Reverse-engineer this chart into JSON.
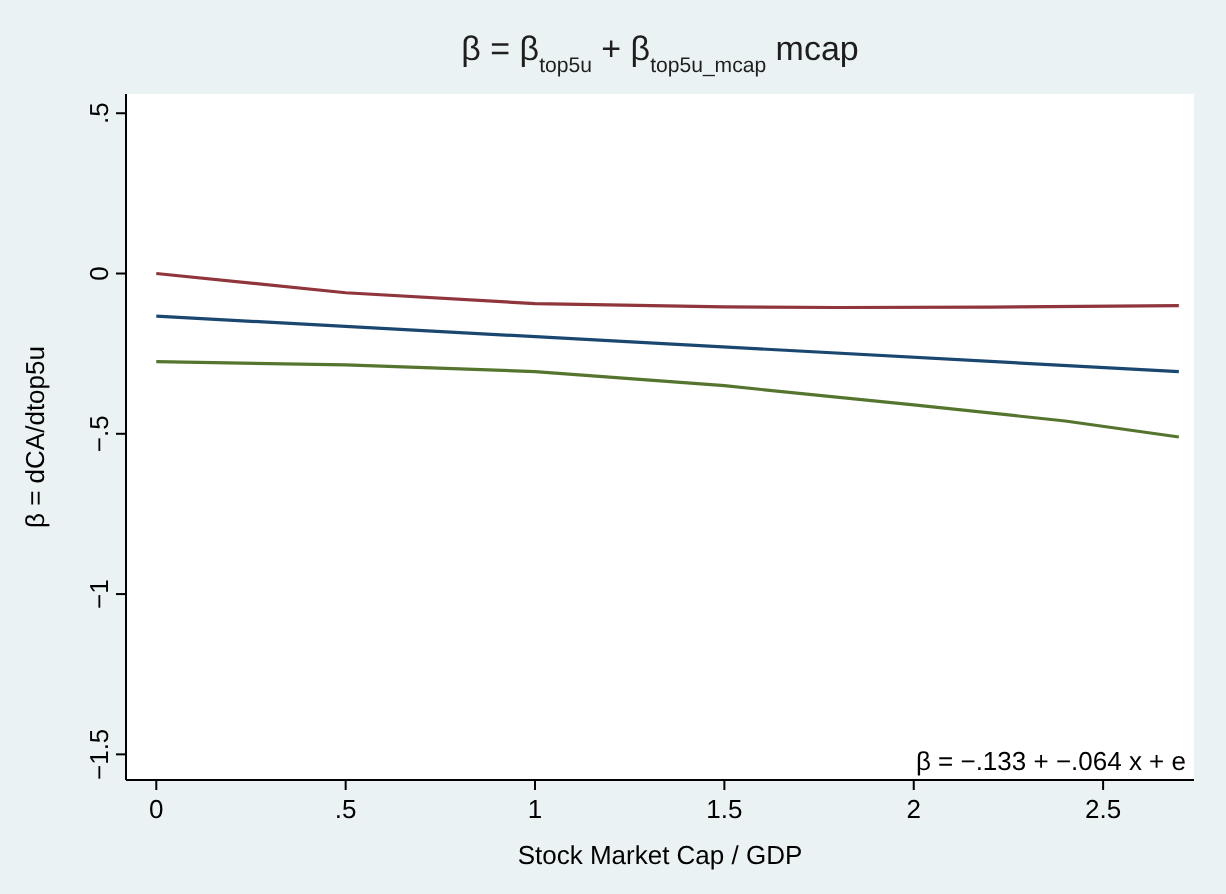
{
  "chart_data": {
    "type": "line",
    "title": "β = β$_{top5u}$ + β$_{top5u_mcap}$ mcap",
    "xlabel": "Stock Market Cap / GDP",
    "ylabel": "β = dCA/dtop5u",
    "xlim": [
      -0.08,
      2.74
    ],
    "xticks": [
      0,
      {
        "value": 0.5,
        "label": ".5"
      },
      1,
      1.5,
      2,
      2.5
    ],
    "ylim": [
      -1.58,
      0.56
    ],
    "yticks": [
      {
        "value": -1.5,
        "label": "−1.5"
      },
      {
        "value": -1,
        "label": "−1"
      },
      {
        "value": -0.5,
        "label": "−.5"
      },
      0,
      {
        "value": 0.5,
        "label": ".5"
      }
    ],
    "grid": false,
    "series": [
      {
        "color": "#90353b",
        "x": [
          0,
          0.5,
          1,
          1.5,
          1.8,
          2.2,
          2.7
        ],
        "values": [
          0,
          -0.06,
          -0.094,
          -0.104,
          -0.106,
          -0.105,
          -0.1
        ]
      },
      {
        "color": "#1a476f",
        "x": [
          0,
          2.7
        ],
        "values": [
          -0.133,
          -0.306
        ]
      },
      {
        "color": "#55752f",
        "x": [
          0,
          0.5,
          1,
          1.5,
          2,
          2.4,
          2.7
        ],
        "values": [
          -0.275,
          -0.285,
          -0.306,
          -0.35,
          -0.41,
          -0.46,
          -0.51
        ]
      }
    ],
    "annotations": [
      "β = −.133 + −.064 x + e"
    ]
  }
}
